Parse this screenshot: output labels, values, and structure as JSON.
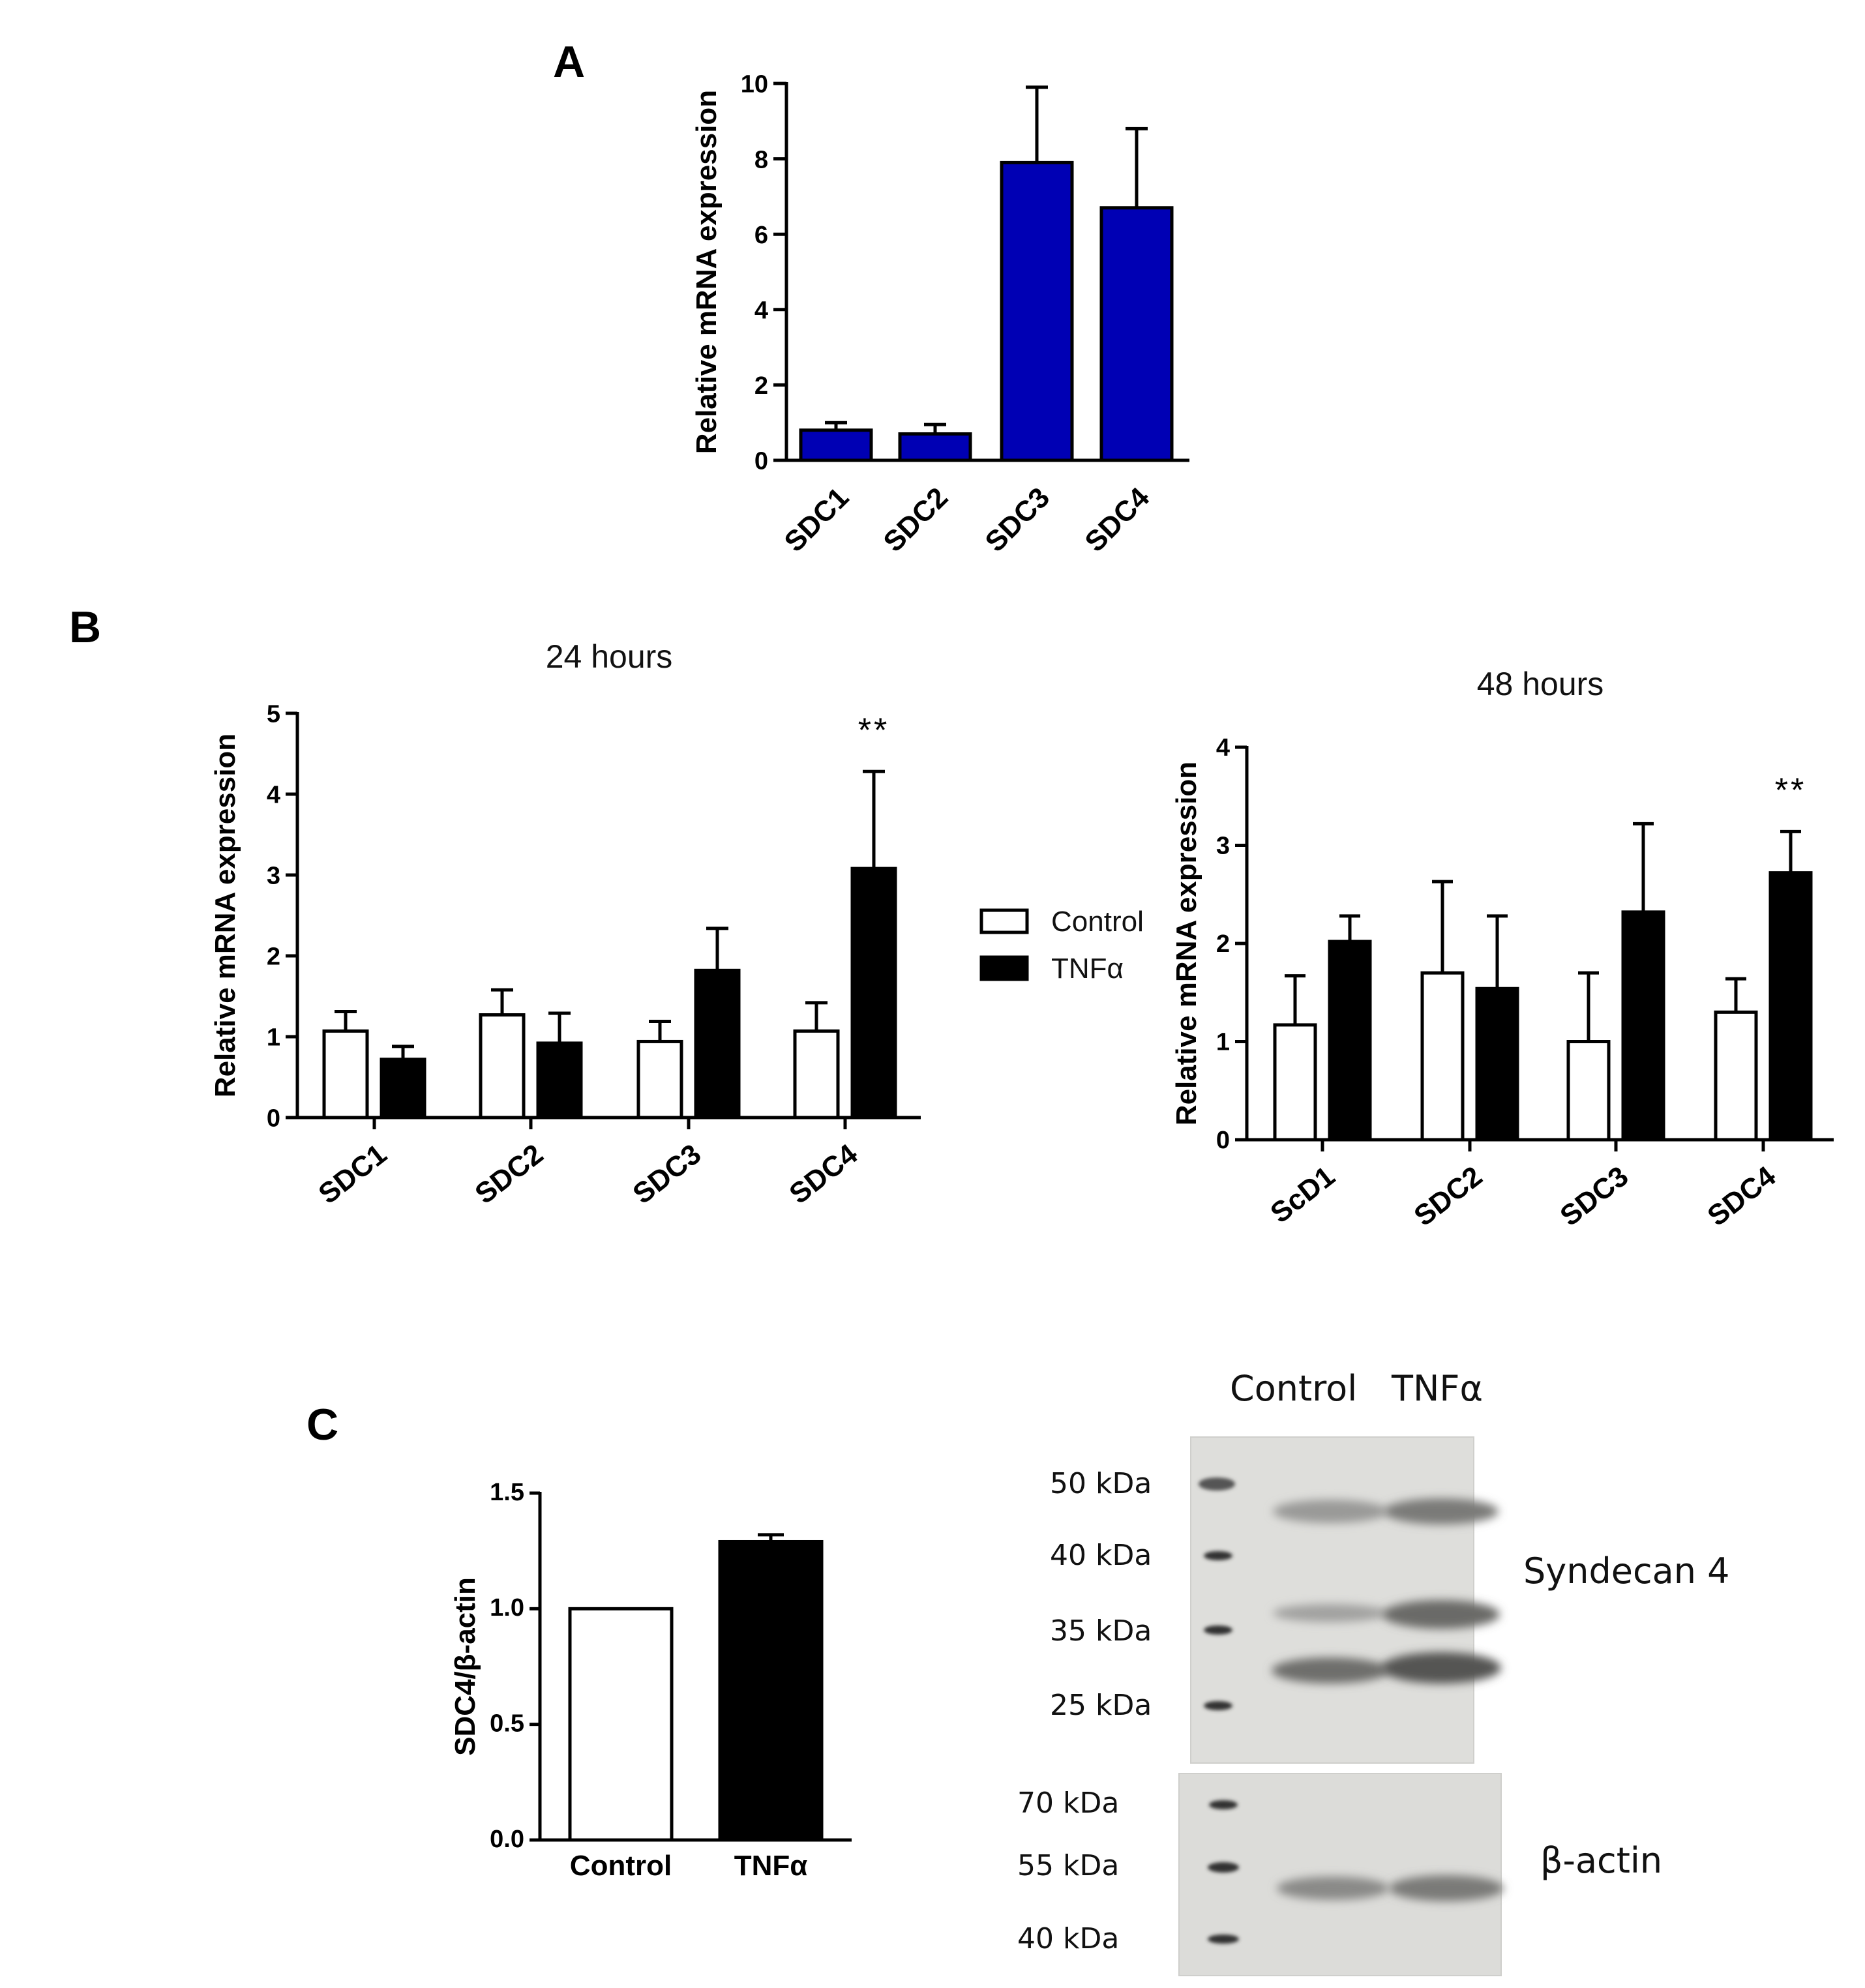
{
  "panels": {
    "a": "A",
    "b": "B",
    "c": "C"
  },
  "chart_data": [
    {
      "id": "A",
      "type": "bar",
      "title": "",
      "xlabel": "",
      "ylabel": "Relative mRNA expression",
      "ylim": [
        0,
        10
      ],
      "yticks": [
        0,
        2,
        4,
        6,
        8,
        10
      ],
      "categories": [
        "SDC1",
        "SDC2",
        "SDC3",
        "SDC4"
      ],
      "series": [
        {
          "name": "Expression",
          "color": "#0000b4",
          "values": [
            0.8,
            0.7,
            7.9,
            6.7
          ],
          "errors": [
            0.2,
            0.25,
            2.0,
            2.1
          ]
        }
      ]
    },
    {
      "id": "B24",
      "type": "bar",
      "title": "24 hours",
      "xlabel": "",
      "ylabel": "Relative mRNA expression",
      "ylim": [
        0,
        5
      ],
      "yticks": [
        0,
        1,
        2,
        3,
        4,
        5
      ],
      "categories": [
        "SDC1",
        "SDC2",
        "SDC3",
        "SDC4"
      ],
      "series": [
        {
          "name": "Control",
          "color": "#ffffff",
          "values": [
            1.07,
            1.27,
            0.94,
            1.07
          ],
          "errors": [
            0.24,
            0.31,
            0.25,
            0.35
          ]
        },
        {
          "name": "TNFα",
          "color": "#000000",
          "values": [
            0.72,
            0.92,
            1.82,
            3.08
          ],
          "errors": [
            0.16,
            0.37,
            0.52,
            1.2
          ]
        }
      ],
      "annotations": [
        {
          "category": "SDC4",
          "text": "**"
        }
      ]
    },
    {
      "id": "B48",
      "type": "bar",
      "title": "48 hours",
      "xlabel": "",
      "ylabel": "Relative mRNA expression",
      "ylim": [
        0,
        4
      ],
      "yticks": [
        0,
        1,
        2,
        3,
        4
      ],
      "categories": [
        "ScD1",
        "SDC2",
        "SDC3",
        "SDC4"
      ],
      "series": [
        {
          "name": "Control",
          "color": "#ffffff",
          "values": [
            1.17,
            1.7,
            1.0,
            1.3
          ],
          "errors": [
            0.5,
            0.93,
            0.7,
            0.34
          ]
        },
        {
          "name": "TNFα",
          "color": "#000000",
          "values": [
            2.02,
            1.54,
            2.32,
            2.72
          ],
          "errors": [
            0.26,
            0.74,
            0.9,
            0.42
          ]
        }
      ],
      "annotations": [
        {
          "category": "SDC4",
          "text": "**"
        }
      ]
    },
    {
      "id": "C",
      "type": "bar",
      "title": "",
      "xlabel": "",
      "ylabel": "SDC4/β-actin",
      "ylim": [
        0,
        1.5
      ],
      "yticks": [
        0.0,
        0.5,
        1.0,
        1.5
      ],
      "tick_labels": [
        "0.0",
        "0.5",
        "1.0",
        "1.5"
      ],
      "categories": [
        "Control",
        "TNFα"
      ],
      "series": [
        {
          "name": "SDC4/β-actin",
          "values": [
            1.0,
            1.29
          ],
          "errors": [
            0.0,
            0.03
          ],
          "colors": [
            "#ffffff",
            "#000000"
          ]
        }
      ]
    }
  ],
  "legend": {
    "items": [
      {
        "label": "Control",
        "color": "#ffffff"
      },
      {
        "label": "TNFα",
        "color": "#000000"
      }
    ]
  },
  "blot": {
    "lanes": [
      "Control",
      "TNFα"
    ],
    "upper": {
      "name": "Syndecan 4",
      "markers": [
        "50 kDa",
        "40 kDa",
        "35 kDa",
        "25 kDa"
      ]
    },
    "lower": {
      "name": "β-actin",
      "markers": [
        "70 kDa",
        "55 kDa",
        "40 kDa"
      ]
    }
  }
}
